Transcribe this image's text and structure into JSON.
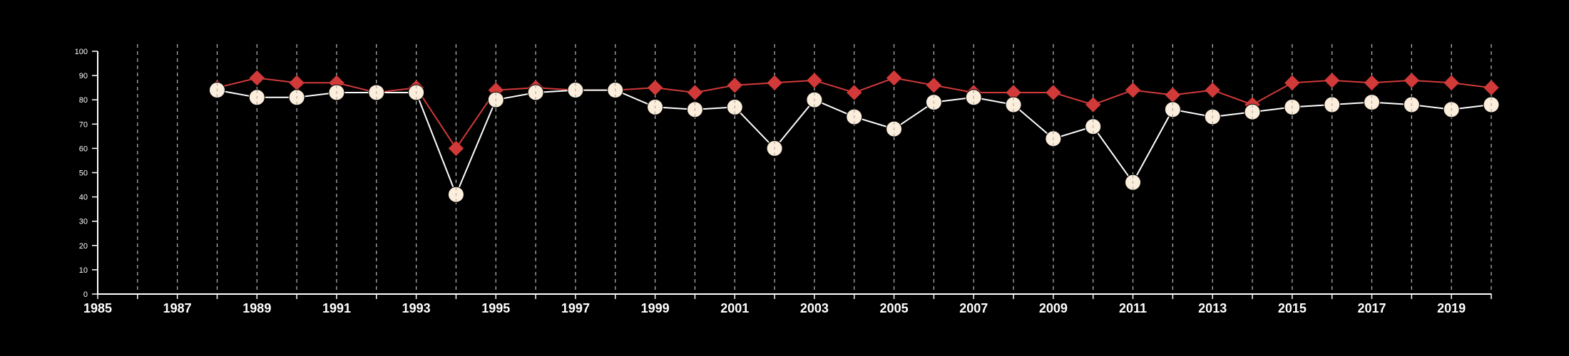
{
  "chart_data": {
    "type": "line",
    "title": "",
    "xlabel": "",
    "ylabel": "",
    "xlim": [
      1985,
      2020
    ],
    "ylim": [
      0,
      100
    ],
    "grid": {
      "x": "dashed-vertical",
      "y": "none"
    },
    "background": "#000000",
    "axis_color": "#ffffff",
    "grid_color": "#bdbdbd",
    "y_ticks": [
      0,
      10,
      20,
      30,
      40,
      50,
      60,
      70,
      80,
      90,
      100
    ],
    "x_tick_labels": [
      1985,
      1987,
      1989,
      1991,
      1993,
      1995,
      1997,
      1999,
      2001,
      2003,
      2005,
      2007,
      2009,
      2011,
      2013,
      2015,
      2017,
      2019
    ],
    "x_gridlines": [
      1986,
      1987,
      1988,
      1989,
      1990,
      1991,
      1992,
      1993,
      1994,
      1995,
      1996,
      1997,
      1998,
      1999,
      2000,
      2001,
      2002,
      2003,
      2004,
      2005,
      2006,
      2007,
      2008,
      2009,
      2010,
      2011,
      2012,
      2013,
      2014,
      2015,
      2016,
      2017,
      2018,
      2019,
      2020
    ],
    "x": [
      1988,
      1989,
      1990,
      1991,
      1992,
      1993,
      1994,
      1995,
      1996,
      1997,
      1998,
      1999,
      2000,
      2001,
      2002,
      2003,
      2004,
      2005,
      2006,
      2007,
      2008,
      2009,
      2010,
      2011,
      2012,
      2013,
      2014,
      2015,
      2016,
      2017,
      2018,
      2019,
      2020
    ],
    "series": [
      {
        "marker": "diamond",
        "color": "#d23a3a",
        "values": [
          85,
          89,
          87,
          87,
          83,
          85,
          60,
          84,
          85,
          84,
          84,
          85,
          83,
          86,
          87,
          88,
          83,
          89,
          86,
          83,
          83,
          83,
          78,
          84,
          82,
          84,
          78,
          87,
          88,
          87,
          88,
          87,
          85
        ]
      },
      {
        "marker": "circle",
        "color": "#fbeedd",
        "line_color": "#ffffff",
        "values": [
          84,
          81,
          81,
          83,
          83,
          83,
          41,
          80,
          83,
          84,
          84,
          77,
          76,
          77,
          60,
          80,
          73,
          68,
          79,
          81,
          78,
          64,
          69,
          46,
          76,
          73,
          75,
          77,
          78,
          79,
          78,
          76,
          78
        ]
      }
    ]
  }
}
